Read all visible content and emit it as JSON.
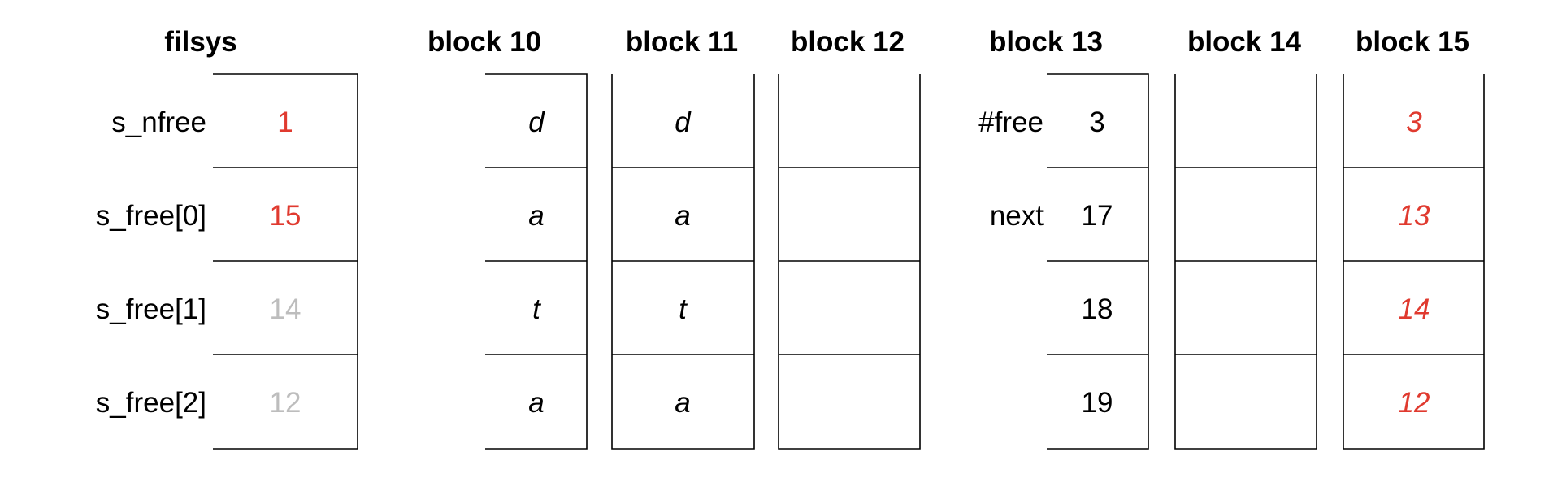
{
  "colors": {
    "black": "#000000",
    "red": "#e03a2f",
    "gray": "#bdbdbd"
  },
  "filsys": {
    "title": "filsys",
    "rows": [
      {
        "label": "s_nfree",
        "value": "1",
        "tone": "red"
      },
      {
        "label": "s_free[0]",
        "value": "15",
        "tone": "red"
      },
      {
        "label": "s_free[1]",
        "value": "14",
        "tone": "gray"
      },
      {
        "label": "s_free[2]",
        "value": "12",
        "tone": "gray"
      }
    ]
  },
  "blocks": [
    {
      "title": "block 10",
      "cells": [
        {
          "value": "d",
          "italic": true,
          "tone": "black"
        },
        {
          "value": "a",
          "italic": true,
          "tone": "black"
        },
        {
          "value": "t",
          "italic": true,
          "tone": "black"
        },
        {
          "value": "a",
          "italic": true,
          "tone": "black"
        }
      ]
    },
    {
      "title": "block 11",
      "cells": [
        {
          "value": "d",
          "italic": true,
          "tone": "black"
        },
        {
          "value": "a",
          "italic": true,
          "tone": "black"
        },
        {
          "value": "t",
          "italic": true,
          "tone": "black"
        },
        {
          "value": "a",
          "italic": true,
          "tone": "black"
        }
      ]
    },
    {
      "title": "block 12",
      "cells": [
        {
          "value": "",
          "italic": false,
          "tone": "black"
        },
        {
          "value": "",
          "italic": false,
          "tone": "black"
        },
        {
          "value": "",
          "italic": false,
          "tone": "black"
        },
        {
          "value": "",
          "italic": false,
          "tone": "black"
        }
      ]
    },
    {
      "title": "block 13",
      "cells": [
        {
          "label": "#free",
          "value": "3",
          "italic": false,
          "tone": "black"
        },
        {
          "label": "next",
          "value": "17",
          "italic": false,
          "tone": "black"
        },
        {
          "value": "18",
          "italic": false,
          "tone": "black"
        },
        {
          "value": "19",
          "italic": false,
          "tone": "black"
        }
      ]
    },
    {
      "title": "block 14",
      "cells": [
        {
          "value": "",
          "italic": false,
          "tone": "black"
        },
        {
          "value": "",
          "italic": false,
          "tone": "black"
        },
        {
          "value": "",
          "italic": false,
          "tone": "black"
        },
        {
          "value": "",
          "italic": false,
          "tone": "black"
        }
      ]
    },
    {
      "title": "block 15",
      "cells": [
        {
          "value": "3",
          "italic": true,
          "tone": "red"
        },
        {
          "value": "13",
          "italic": true,
          "tone": "red"
        },
        {
          "value": "14",
          "italic": true,
          "tone": "red"
        },
        {
          "value": "12",
          "italic": true,
          "tone": "red"
        }
      ]
    }
  ]
}
